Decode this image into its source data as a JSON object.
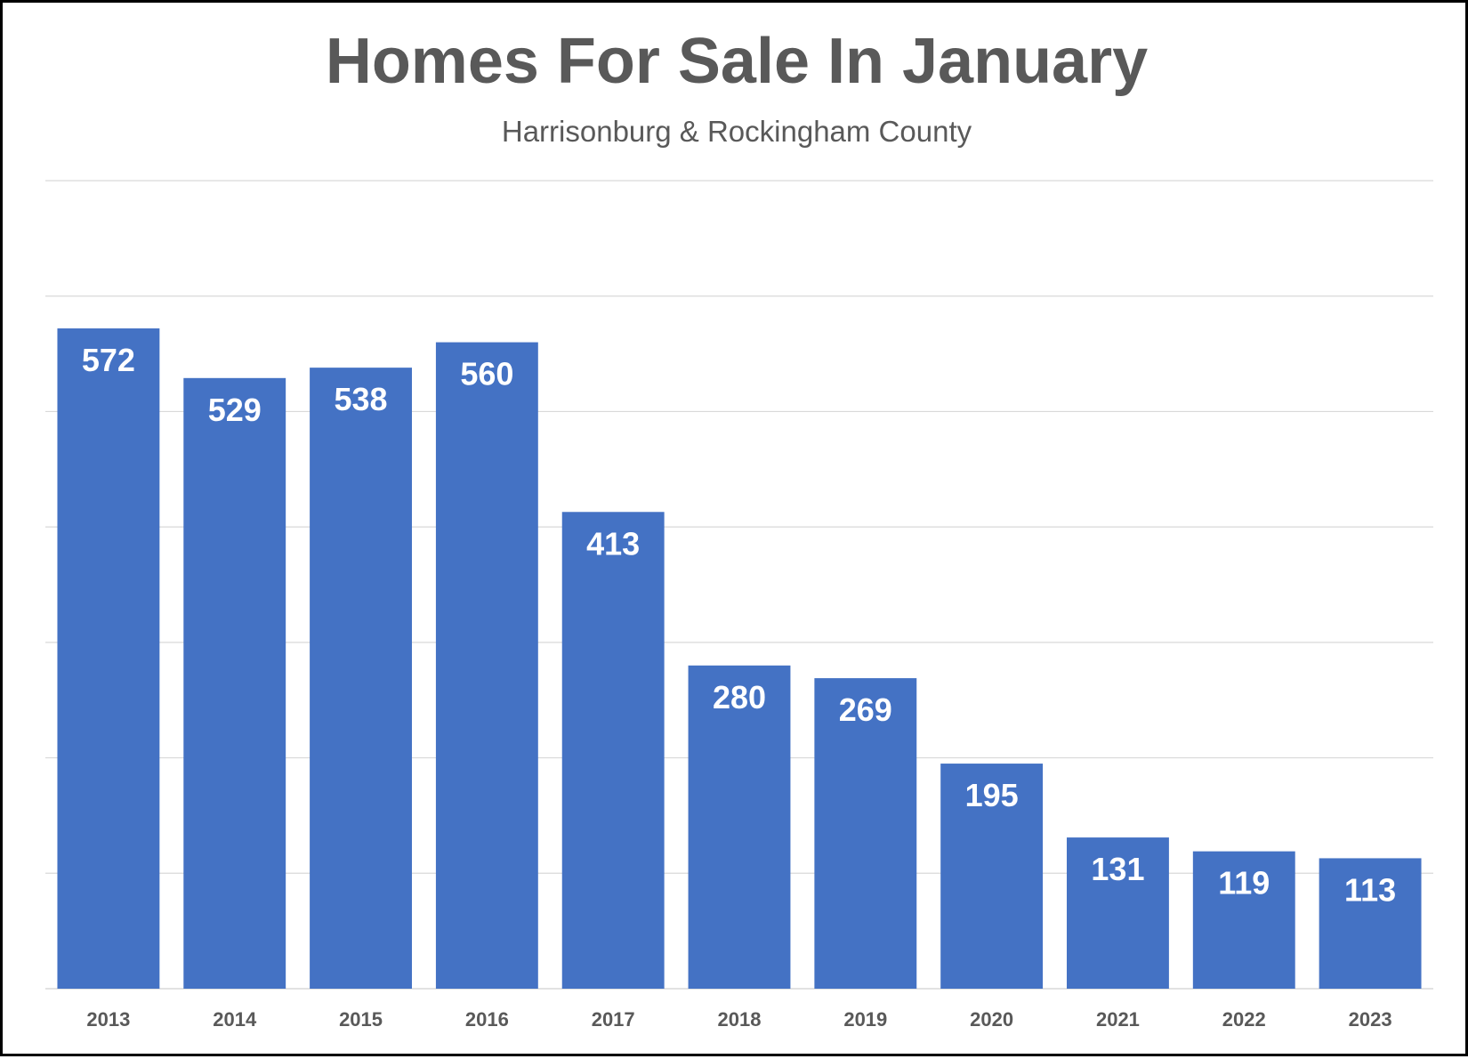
{
  "chart_data": {
    "type": "bar",
    "title": "Homes For Sale In January",
    "subtitle": "Harrisonburg & Rockingham County",
    "xlabel": "",
    "ylabel": "",
    "categories": [
      "2013",
      "2014",
      "2015",
      "2016",
      "2017",
      "2018",
      "2019",
      "2020",
      "2021",
      "2022",
      "2023"
    ],
    "values": [
      572,
      529,
      538,
      560,
      413,
      280,
      269,
      195,
      131,
      119,
      113
    ],
    "ylim": [
      0,
      700
    ],
    "ytick_step": 100,
    "grid": true,
    "legend": "none",
    "bar_color": "#4472c4",
    "label_color": "#ffffff",
    "grid_color": "#d9d9d9",
    "text_color": "#595959"
  }
}
